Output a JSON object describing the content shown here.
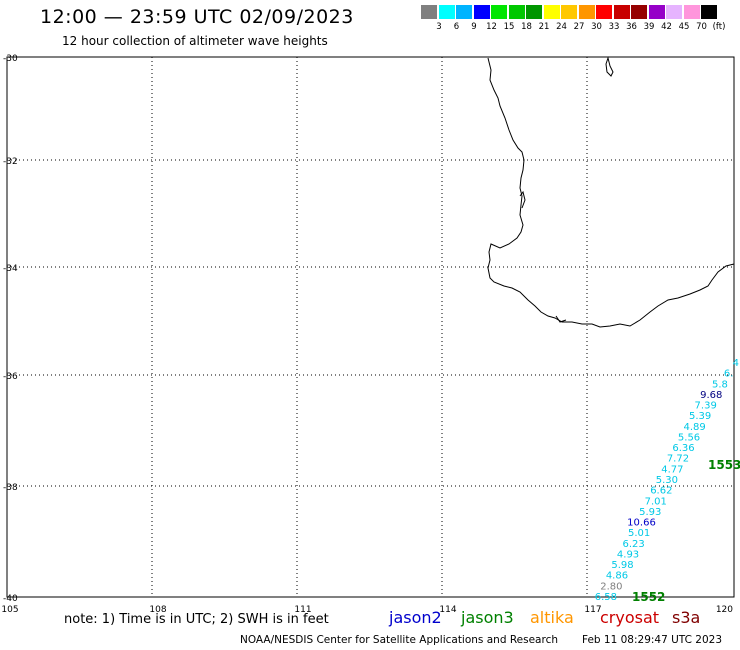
{
  "header": {
    "title": "12:00 — 23:59 UTC 02/09/2023",
    "subtitle": "12 hour collection of altimeter wave heights"
  },
  "colorbar": {
    "colors": [
      "#808080",
      "#00ffff",
      "#00b4ff",
      "#0000ff",
      "#00e600",
      "#00c800",
      "#009600",
      "#ffff00",
      "#ffc800",
      "#ff9600",
      "#ff0000",
      "#c80000",
      "#960000",
      "#9600c8",
      "#e6b4ff",
      "#ff96dc",
      "#000000"
    ],
    "labels": [
      "3",
      "6",
      "9",
      "12",
      "15",
      "18",
      "21",
      "24",
      "27",
      "30",
      "33",
      "36",
      "39",
      "42",
      "45",
      "70",
      "(ft)"
    ]
  },
  "axes": {
    "lat_labels": [
      "-30",
      "-32",
      "-34",
      "-36",
      "-38",
      "-40"
    ],
    "lon_labels": [
      "105",
      "108",
      "111",
      "114",
      "117",
      "120"
    ]
  },
  "wave_heights": [
    {
      "label": "4",
      "color": "#00c8e6"
    },
    {
      "label": "6.",
      "color": "#00c8e6"
    },
    {
      "label": "5.8",
      "color": "#00c8e6"
    },
    {
      "label": "9.68",
      "color": "#000080"
    },
    {
      "label": "7.39",
      "color": "#00c8e6"
    },
    {
      "label": "5.39",
      "color": "#00c8e6"
    },
    {
      "label": "4.89",
      "color": "#00c8e6"
    },
    {
      "label": "5.56",
      "color": "#00c8e6"
    },
    {
      "label": "6.36",
      "color": "#00c8e6"
    },
    {
      "label": "7.72",
      "color": "#00c8e6"
    },
    {
      "label": "4.77",
      "color": "#00c8e6"
    },
    {
      "label": "5.30",
      "color": "#00c8e6"
    },
    {
      "label": "6.62",
      "color": "#00c8e6"
    },
    {
      "label": "7.01",
      "color": "#00c8e6"
    },
    {
      "label": "5.93",
      "color": "#00c8e6"
    },
    {
      "label": "10.66",
      "color": "#0000c8"
    },
    {
      "label": "5.01",
      "color": "#00c8e6"
    },
    {
      "label": "6.23",
      "color": "#00c8e6"
    },
    {
      "label": "4.93",
      "color": "#00c8e6"
    },
    {
      "label": "5.98",
      "color": "#00c8e6"
    },
    {
      "label": "4.86",
      "color": "#00c8e6"
    },
    {
      "label": "2.80",
      "color": "#808080"
    },
    {
      "label": "6.58",
      "color": "#00c8e6"
    }
  ],
  "time_labels": [
    {
      "label": "1553",
      "color": "#008000"
    },
    {
      "label": "1552",
      "color": "#008000"
    }
  ],
  "note": "note: 1) Time is in UTC; 2) SWH is in feet",
  "satellites": [
    {
      "label": "jason2",
      "color": "#0000cc"
    },
    {
      "label": "jason3",
      "color": "#008000"
    },
    {
      "label": "altika",
      "color": "#ff9600"
    },
    {
      "label": "cryosat",
      "color": "#cc0000"
    },
    {
      "label": "s3a",
      "color": "#800000"
    }
  ],
  "footer": {
    "left": "NOAA/NESDIS Center for Satellite Applications and Research",
    "right": "Feb 11 08:29:47 UTC 2023"
  }
}
